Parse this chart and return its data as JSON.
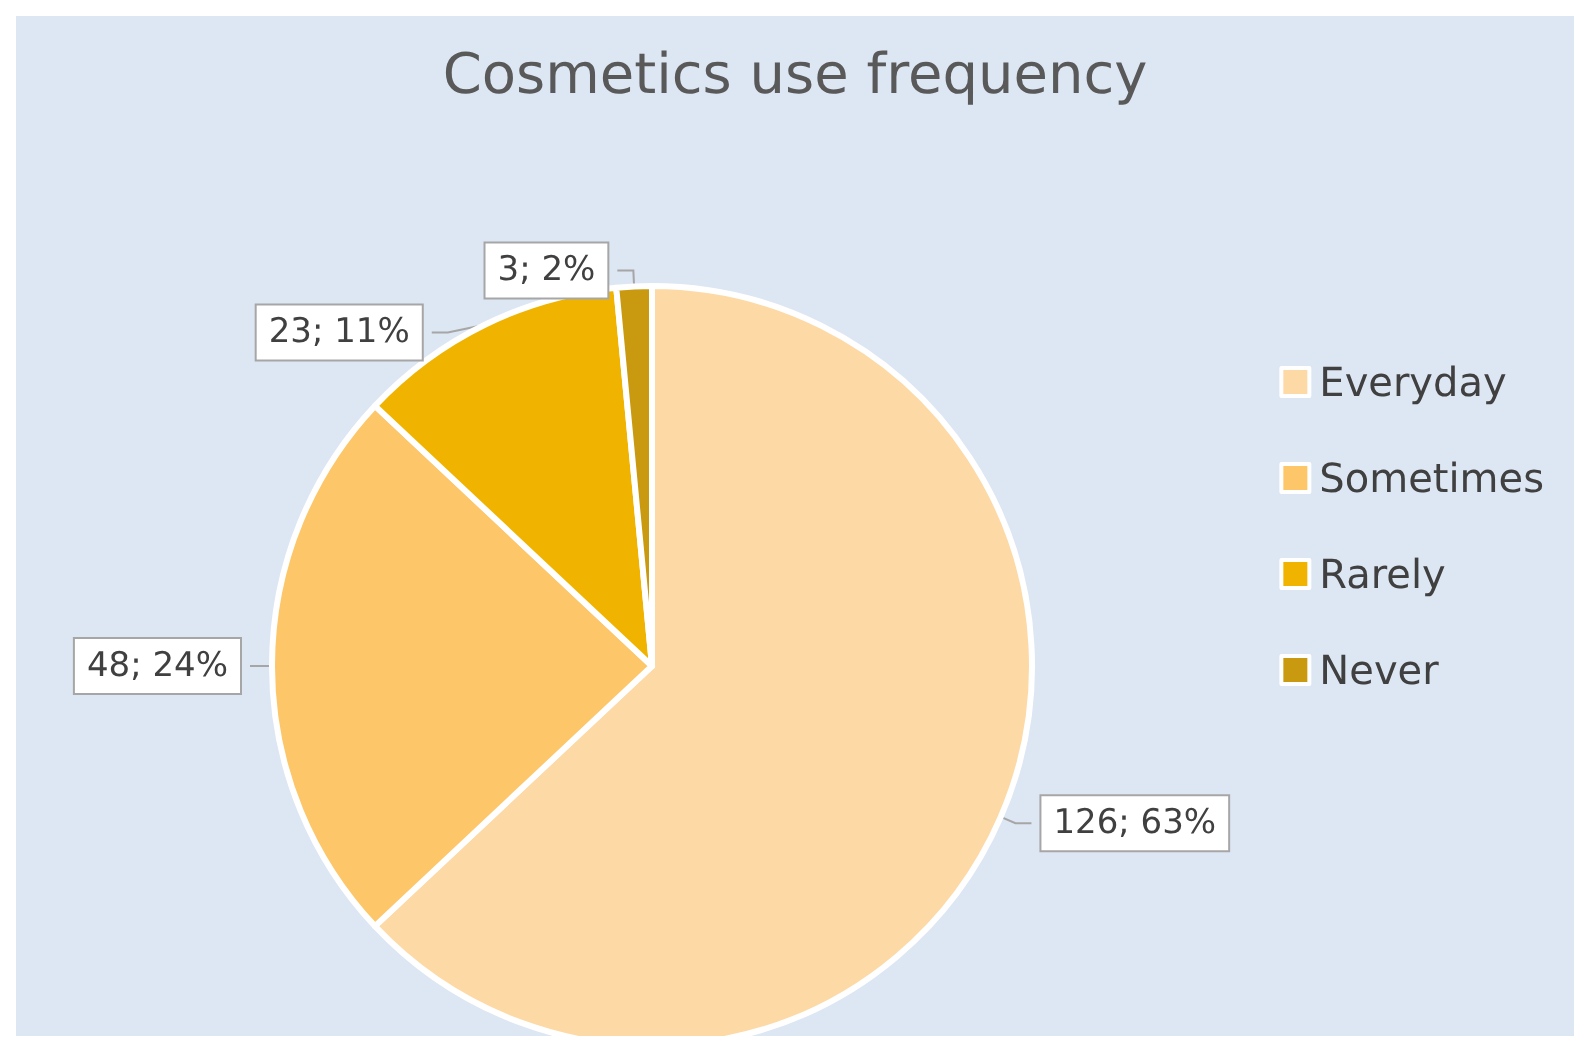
{
  "chart_data": {
    "type": "pie",
    "title": "Cosmetics use frequency",
    "categories": [
      "Everyday",
      "Sometimes",
      "Rarely",
      "Never"
    ],
    "values": [
      126,
      48,
      23,
      3
    ],
    "colors": [
      "#fdd9a6",
      "#fdc668",
      "#f0b400",
      "#c99a10"
    ],
    "value_labels": [
      "126; 63%",
      "48; 24%",
      "23; 11%",
      "3; 2%"
    ],
    "legend": "right"
  }
}
